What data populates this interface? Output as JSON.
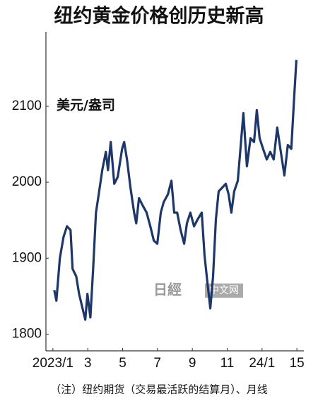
{
  "chart_data": {
    "type": "line",
    "title": "纽约黄金价格创历史新高",
    "unit_label": "美元/盎司",
    "footnote": "（注）纽约期货（交易最活跃的结算月）、月线",
    "watermark": [
      "日經",
      "中文网"
    ],
    "x": [
      1.08,
      1.2,
      1.4,
      1.61,
      1.81,
      2.01,
      2.13,
      2.34,
      2.5,
      2.74,
      2.86,
      2.98,
      3.15,
      3.31,
      3.47,
      3.63,
      3.83,
      4.04,
      4.16,
      4.32,
      4.52,
      4.72,
      4.97,
      5.09,
      5.25,
      5.45,
      5.66,
      5.78,
      5.94,
      6.14,
      6.38,
      6.59,
      6.79,
      6.99,
      7.19,
      7.36,
      7.6,
      7.8,
      7.96,
      8.13,
      8.33,
      8.53,
      8.69,
      8.89,
      9.1,
      9.3,
      9.54,
      9.7,
      9.87,
      10.03,
      10.19,
      10.35,
      10.51,
      10.72,
      10.92,
      11.08,
      11.24,
      11.4,
      11.61,
      11.81,
      11.93,
      12.13,
      12.34,
      12.54,
      12.7,
      12.86,
      13.06,
      13.27,
      13.47,
      13.67,
      13.87,
      14.08,
      14.28,
      14.48,
      14.68,
      14.85,
      14.97
    ],
    "series": [
      {
        "color": "#1d3768",
        "values": [
          1858,
          1844,
          1900,
          1928,
          1942,
          1937,
          1886,
          1876,
          1853,
          1830,
          1819,
          1853,
          1822,
          1886,
          1960,
          1984,
          2016,
          2040,
          2016,
          2053,
          1998,
          2007,
          2044,
          2053,
          2030,
          1993,
          1960,
          1946,
          1979,
          1970,
          1960,
          1942,
          1923,
          1919,
          1960,
          1974,
          1984,
          2002,
          1960,
          1960,
          1937,
          1919,
          1946,
          1960,
          1942,
          1951,
          1960,
          1904,
          1867,
          1834,
          1876,
          1951,
          1988,
          1993,
          1998,
          1984,
          1960,
          1988,
          2002,
          2058,
          2091,
          2021,
          2058,
          2053,
          2095,
          2058,
          2044,
          2030,
          2040,
          2030,
          2072,
          2040,
          2009,
          2049,
          2044,
          2114,
          2161
        ]
      }
    ],
    "xlim": [
      0.6,
      15.4
    ],
    "xticks": [
      {
        "value": 1,
        "label": "2023/1"
      },
      3,
      5,
      7,
      9,
      11,
      {
        "value": 13,
        "label": "24/1"
      },
      15
    ],
    "ylim": [
      1778,
      2198
    ],
    "yticks": [
      1800,
      1900,
      2000,
      2100
    ]
  }
}
